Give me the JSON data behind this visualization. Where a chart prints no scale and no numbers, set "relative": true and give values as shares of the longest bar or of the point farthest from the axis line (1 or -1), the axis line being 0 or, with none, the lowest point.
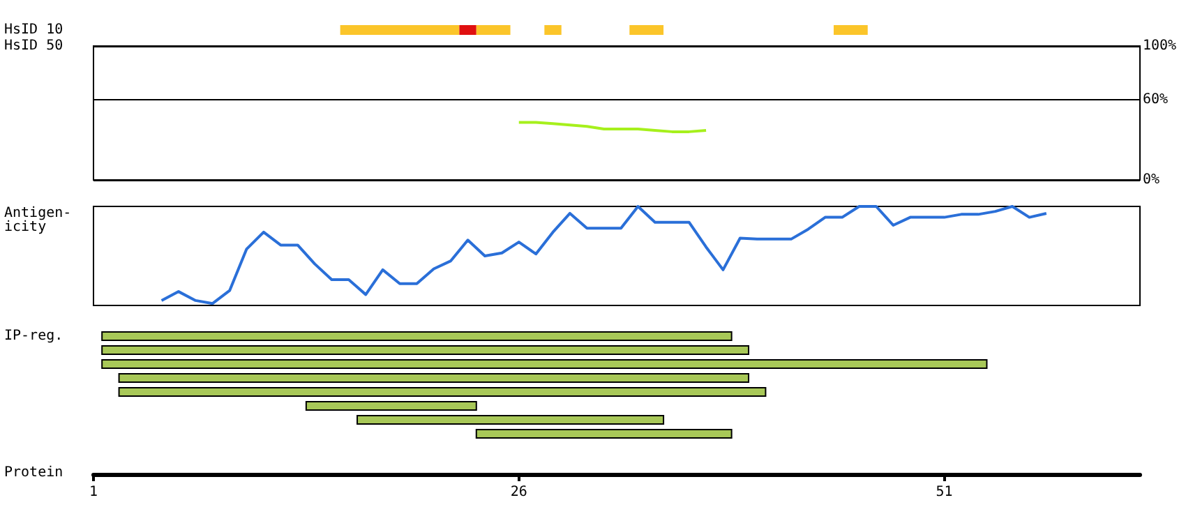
{
  "chart_data": [
    {
      "type": "bar",
      "orientation": "horizontal",
      "categories": [
        "HsID 10"
      ],
      "xticks": [
        1,
        26,
        51
      ],
      "tick_labels": "y",
      "series": [
        {
          "color": "#fbc52a",
          "values": [
            7
          ],
          "base": [
            15.5
          ]
        },
        {
          "color": "#e01010",
          "values": [
            1
          ],
          "base": [
            22.5
          ]
        },
        {
          "color": "#fbc52a",
          "values": [
            2
          ],
          "base": [
            23.5
          ]
        },
        {
          "color": "#fbc52a",
          "values": [
            1
          ],
          "base": [
            27.5
          ]
        },
        {
          "color": "#fbc52a",
          "values": [
            2
          ],
          "base": [
            32.5
          ]
        },
        {
          "color": "#fbc52a",
          "values": [
            2
          ],
          "base": [
            44.5
          ]
        }
      ]
    },
    {
      "type": "line",
      "ylabel": "HsID 50",
      "xlim": [
        1,
        62.5
      ],
      "ylim": [
        0,
        100
      ],
      "yticks": [
        {
          "value": 0,
          "label": "0%"
        },
        {
          "value": 60,
          "label": "60%"
        },
        {
          "value": 100,
          "label": "100%"
        }
      ],
      "grid": "y",
      "tick_labels": "y",
      "marker": "none",
      "series": [
        {
          "color": "#a6f01c",
          "x": [
            26,
            27,
            28,
            29,
            30,
            31,
            32,
            33,
            34,
            35,
            36,
            37
          ],
          "values": [
            43,
            43,
            42,
            41,
            40,
            38,
            38,
            38,
            37,
            36,
            36,
            37
          ]
        }
      ]
    },
    {
      "type": "line",
      "ylabel": "Antigen-\nicity",
      "relative": true,
      "xlim": [
        1,
        62.5
      ],
      "tick_labels": false,
      "marker": "none",
      "series": [
        {
          "color": "#2a6fd8",
          "x": [
            5,
            6,
            7,
            8,
            9,
            10,
            11,
            12,
            13,
            14,
            15,
            16,
            17,
            18,
            19,
            20,
            21,
            22,
            23,
            24,
            25,
            26,
            27,
            28,
            29,
            30,
            31,
            32,
            33,
            34,
            35,
            36,
            37,
            38,
            39,
            40,
            41,
            42,
            43,
            44,
            45,
            46,
            47,
            48,
            49,
            50,
            51,
            52,
            53,
            54,
            55,
            56,
            57
          ],
          "values": [
            0.05,
            0.14,
            0.05,
            0.02,
            0.15,
            0.57,
            0.74,
            0.61,
            0.61,
            0.42,
            0.26,
            0.26,
            0.11,
            0.36,
            0.22,
            0.22,
            0.37,
            0.45,
            0.66,
            0.5,
            0.53,
            0.64,
            0.52,
            0.74,
            0.93,
            0.78,
            0.78,
            0.78,
            1,
            0.84,
            0.84,
            0.84,
            0.59,
            0.36,
            0.68,
            0.67,
            0.67,
            0.67,
            0.77,
            0.89,
            0.89,
            1,
            1,
            0.81,
            0.89,
            0.89,
            0.89,
            0.92,
            0.92,
            0.95,
            1,
            0.89,
            0.93
          ]
        }
      ]
    },
    {
      "type": "bar",
      "orientation": "horizontal",
      "ylabel": "IP-reg.",
      "xlabel": "Protein",
      "categories": [
        null,
        null,
        null,
        null,
        null,
        null,
        null,
        null
      ],
      "xlim": [
        1,
        62.5
      ],
      "xticks": [
        1,
        26,
        51
      ],
      "color": "#a8c858",
      "base": [
        1.5,
        1.5,
        1.5,
        2.5,
        2.5,
        13.5,
        16.5,
        23.5
      ],
      "values": [
        37,
        38,
        52,
        37,
        38,
        10,
        18,
        15
      ]
    }
  ]
}
